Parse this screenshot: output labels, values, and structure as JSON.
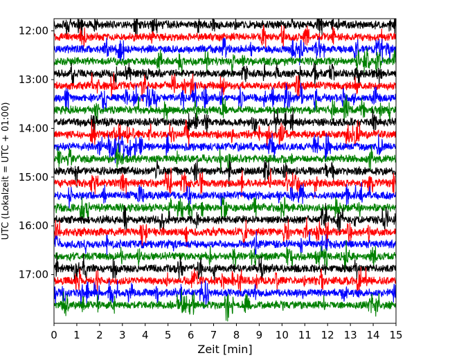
{
  "chart_data": {
    "type": "line",
    "title": "",
    "xlabel": "Zeit  [min]",
    "ylabel": "UTC (Lokalzeit = UTC + 01:00)",
    "xlim": [
      0,
      15
    ],
    "x_ticks": [
      "0",
      "1",
      "2",
      "3",
      "4",
      "5",
      "6",
      "7",
      "8",
      "9",
      "10",
      "11",
      "12",
      "13",
      "14",
      "15"
    ],
    "y_ticks": [
      "12:00",
      "13:00",
      "14:00",
      "15:00",
      "16:00",
      "17:00"
    ],
    "start_time": "11:45",
    "end_time": "18:00",
    "trace_interval_minutes": 15,
    "trace_colors": [
      "#000000",
      "#ff0000",
      "#0000ff",
      "#008000"
    ],
    "grid": false,
    "legend": "none",
    "traces": [
      {
        "start": "11:45",
        "color": "#000000"
      },
      {
        "start": "12:00",
        "color": "#ff0000"
      },
      {
        "start": "12:15",
        "color": "#0000ff"
      },
      {
        "start": "12:30",
        "color": "#008000"
      },
      {
        "start": "12:45",
        "color": "#000000"
      },
      {
        "start": "13:00",
        "color": "#ff0000"
      },
      {
        "start": "13:15",
        "color": "#0000ff"
      },
      {
        "start": "13:30",
        "color": "#008000"
      },
      {
        "start": "13:45",
        "color": "#000000"
      },
      {
        "start": "14:00",
        "color": "#ff0000"
      },
      {
        "start": "14:15",
        "color": "#0000ff"
      },
      {
        "start": "14:30",
        "color": "#008000"
      },
      {
        "start": "14:45",
        "color": "#000000"
      },
      {
        "start": "15:00",
        "color": "#ff0000"
      },
      {
        "start": "15:15",
        "color": "#0000ff"
      },
      {
        "start": "15:30",
        "color": "#008000"
      },
      {
        "start": "15:45",
        "color": "#000000"
      },
      {
        "start": "16:00",
        "color": "#ff0000"
      },
      {
        "start": "16:15",
        "color": "#0000ff"
      },
      {
        "start": "16:30",
        "color": "#008000"
      },
      {
        "start": "16:45",
        "color": "#000000"
      },
      {
        "start": "17:00",
        "color": "#ff0000"
      },
      {
        "start": "17:15",
        "color": "#0000ff"
      },
      {
        "start": "17:30",
        "color": "#008000"
      }
    ]
  }
}
